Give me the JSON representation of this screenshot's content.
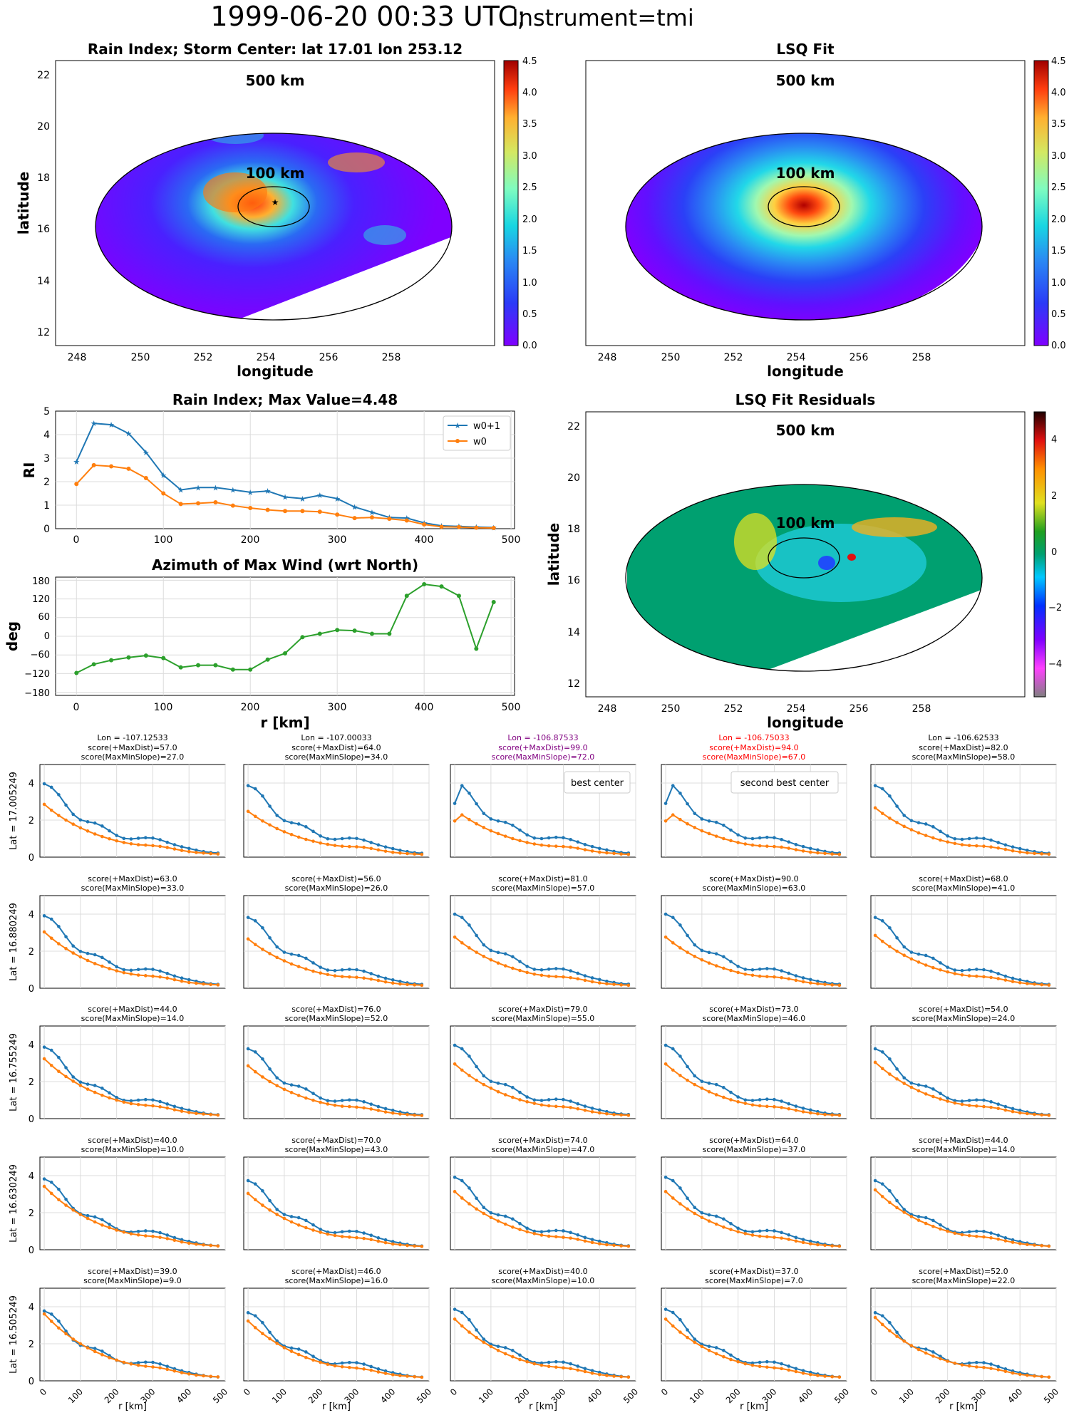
{
  "suptitle": {
    "main": "1999-06-20 00:33 UTC;",
    "sub": "Instrument=tmi"
  },
  "colors": {
    "w0p1": "#1f77b4",
    "w0": "#ff7f0e",
    "azm": "#2ca02c",
    "best": "#800080",
    "second": "#ff0000"
  },
  "map_top_left": {
    "title": "Rain Index; Storm Center: lat 17.01 lon 253.12",
    "xlabel": "longitude",
    "ylabel": "latitude",
    "xticks": [
      "248",
      "250",
      "252",
      "254",
      "256",
      "258"
    ],
    "yticks": [
      "12",
      "14",
      "16",
      "18",
      "20",
      "22"
    ],
    "ring_outer": "500 km",
    "ring_inner": "100 km"
  },
  "map_top_right": {
    "title": "LSQ Fit",
    "xlabel": "longitude",
    "xticks": [
      "248",
      "250",
      "252",
      "254",
      "256",
      "258"
    ],
    "ring_outer": "500 km",
    "ring_inner": "100 km"
  },
  "map_residuals": {
    "title": "LSQ Fit Residuals",
    "xlabel": "longitude",
    "ylabel": "latitude",
    "xticks": [
      "248",
      "250",
      "252",
      "254",
      "256",
      "258"
    ],
    "yticks": [
      "12",
      "14",
      "16",
      "18",
      "20",
      "22"
    ],
    "ring_outer": "500 km",
    "ring_inner": "100 km"
  },
  "colorbar_rain": {
    "ticks": [
      "0.0",
      "0.5",
      "1.0",
      "1.5",
      "2.0",
      "2.5",
      "3.0",
      "3.5",
      "4.0",
      "4.5"
    ]
  },
  "colorbar_resid": {
    "ticks": [
      "4",
      "2",
      "0",
      "−2",
      "−4"
    ]
  },
  "rain_profile": {
    "title": "Rain Index; Max Value=4.48",
    "ylabel": "RI",
    "legend": [
      "w0+1",
      "w0"
    ],
    "yticks": [
      "0",
      "1",
      "2",
      "3",
      "4",
      "5"
    ],
    "xticks": [
      "0",
      "100",
      "200",
      "300",
      "400",
      "500"
    ]
  },
  "azimuth": {
    "title": "Azimuth of Max Wind (wrt North)",
    "ylabel": "deg",
    "xlabel": "r [km]",
    "yticks": [
      "180",
      "120",
      "60",
      "0",
      "−60",
      "−120",
      "−180"
    ],
    "xticks": [
      "0",
      "100",
      "200",
      "300",
      "400",
      "500"
    ]
  },
  "grid": {
    "row_labels": [
      "Lat = 17.005249",
      "Lat = 16.880249",
      "Lat = 16.755249",
      "Lat = 16.630249",
      "Lat = 16.505249"
    ],
    "col_lons": [
      "Lon = -107.12533",
      "Lon = -107.00033",
      "Lon = -106.87533",
      "Lon = -106.75033",
      "Lon = -106.62533"
    ],
    "xlabel": "r [km]",
    "yticks": [
      "0",
      "2",
      "4"
    ],
    "xticks": [
      "0",
      "100",
      "200",
      "300",
      "400",
      "500"
    ],
    "best_label": "best center",
    "second_label": "second best center",
    "scores": [
      [
        [
          "score(+MaxDist)=57.0",
          "score(MaxMinSlope)=27.0"
        ],
        [
          "score(+MaxDist)=64.0",
          "score(MaxMinSlope)=34.0"
        ],
        [
          "score(+MaxDist)=99.0",
          "score(MaxMinSlope)=72.0"
        ],
        [
          "score(+MaxDist)=94.0",
          "score(MaxMinSlope)=67.0"
        ],
        [
          "score(+MaxDist)=82.0",
          "score(MaxMinSlope)=58.0"
        ]
      ],
      [
        [
          "score(+MaxDist)=63.0",
          "score(MaxMinSlope)=33.0"
        ],
        [
          "score(+MaxDist)=56.0",
          "score(MaxMinSlope)=26.0"
        ],
        [
          "score(+MaxDist)=81.0",
          "score(MaxMinSlope)=57.0"
        ],
        [
          "score(+MaxDist)=90.0",
          "score(MaxMinSlope)=63.0"
        ],
        [
          "score(+MaxDist)=68.0",
          "score(MaxMinSlope)=41.0"
        ]
      ],
      [
        [
          "score(+MaxDist)=44.0",
          "score(MaxMinSlope)=14.0"
        ],
        [
          "score(+MaxDist)=76.0",
          "score(MaxMinSlope)=52.0"
        ],
        [
          "score(+MaxDist)=79.0",
          "score(MaxMinSlope)=55.0"
        ],
        [
          "score(+MaxDist)=73.0",
          "score(MaxMinSlope)=46.0"
        ],
        [
          "score(+MaxDist)=54.0",
          "score(MaxMinSlope)=24.0"
        ]
      ],
      [
        [
          "score(+MaxDist)=40.0",
          "score(MaxMinSlope)=10.0"
        ],
        [
          "score(+MaxDist)=70.0",
          "score(MaxMinSlope)=43.0"
        ],
        [
          "score(+MaxDist)=74.0",
          "score(MaxMinSlope)=47.0"
        ],
        [
          "score(+MaxDist)=64.0",
          "score(MaxMinSlope)=37.0"
        ],
        [
          "score(+MaxDist)=44.0",
          "score(MaxMinSlope)=14.0"
        ]
      ],
      [
        [
          "score(+MaxDist)=39.0",
          "score(MaxMinSlope)=9.0"
        ],
        [
          "score(+MaxDist)=46.0",
          "score(MaxMinSlope)=16.0"
        ],
        [
          "score(+MaxDist)=40.0",
          "score(MaxMinSlope)=10.0"
        ],
        [
          "score(+MaxDist)=37.0",
          "score(MaxMinSlope)=7.0"
        ],
        [
          "score(+MaxDist)=52.0",
          "score(MaxMinSlope)=22.0"
        ]
      ]
    ]
  },
  "chart_data": {
    "type": "line",
    "r_km": [
      0,
      20,
      40,
      60,
      80,
      100,
      120,
      140,
      160,
      180,
      200,
      220,
      240,
      260,
      280,
      300,
      320,
      340,
      360,
      380,
      400,
      420,
      440,
      460,
      480
    ],
    "rain_index": {
      "w0p1": [
        2.85,
        4.48,
        4.42,
        4.05,
        3.25,
        2.28,
        1.65,
        1.75,
        1.75,
        1.65,
        1.55,
        1.6,
        1.35,
        1.28,
        1.42,
        1.28,
        0.92,
        0.7,
        0.48,
        0.45,
        0.25,
        0.12,
        0.1,
        0.07,
        0.05
      ],
      "w0": [
        1.9,
        2.7,
        2.65,
        2.55,
        2.15,
        1.5,
        1.05,
        1.08,
        1.12,
        0.98,
        0.88,
        0.8,
        0.75,
        0.75,
        0.72,
        0.6,
        0.45,
        0.48,
        0.42,
        0.35,
        0.18,
        0.08,
        0.07,
        0.04,
        0.03
      ]
    },
    "azimuth_deg": [
      -118,
      -90,
      -77,
      -68,
      -62,
      -70,
      -100,
      -93,
      -93,
      -107,
      -107,
      -75,
      -55,
      -3,
      8,
      20,
      18,
      8,
      8,
      130,
      167,
      160,
      130,
      -40,
      110
    ],
    "azimuth_ylim": [
      -180,
      180
    ],
    "rain_ylim": [
      0,
      5
    ],
    "xlim": [
      -20,
      500
    ],
    "grid_ylim": [
      0,
      5
    ]
  }
}
